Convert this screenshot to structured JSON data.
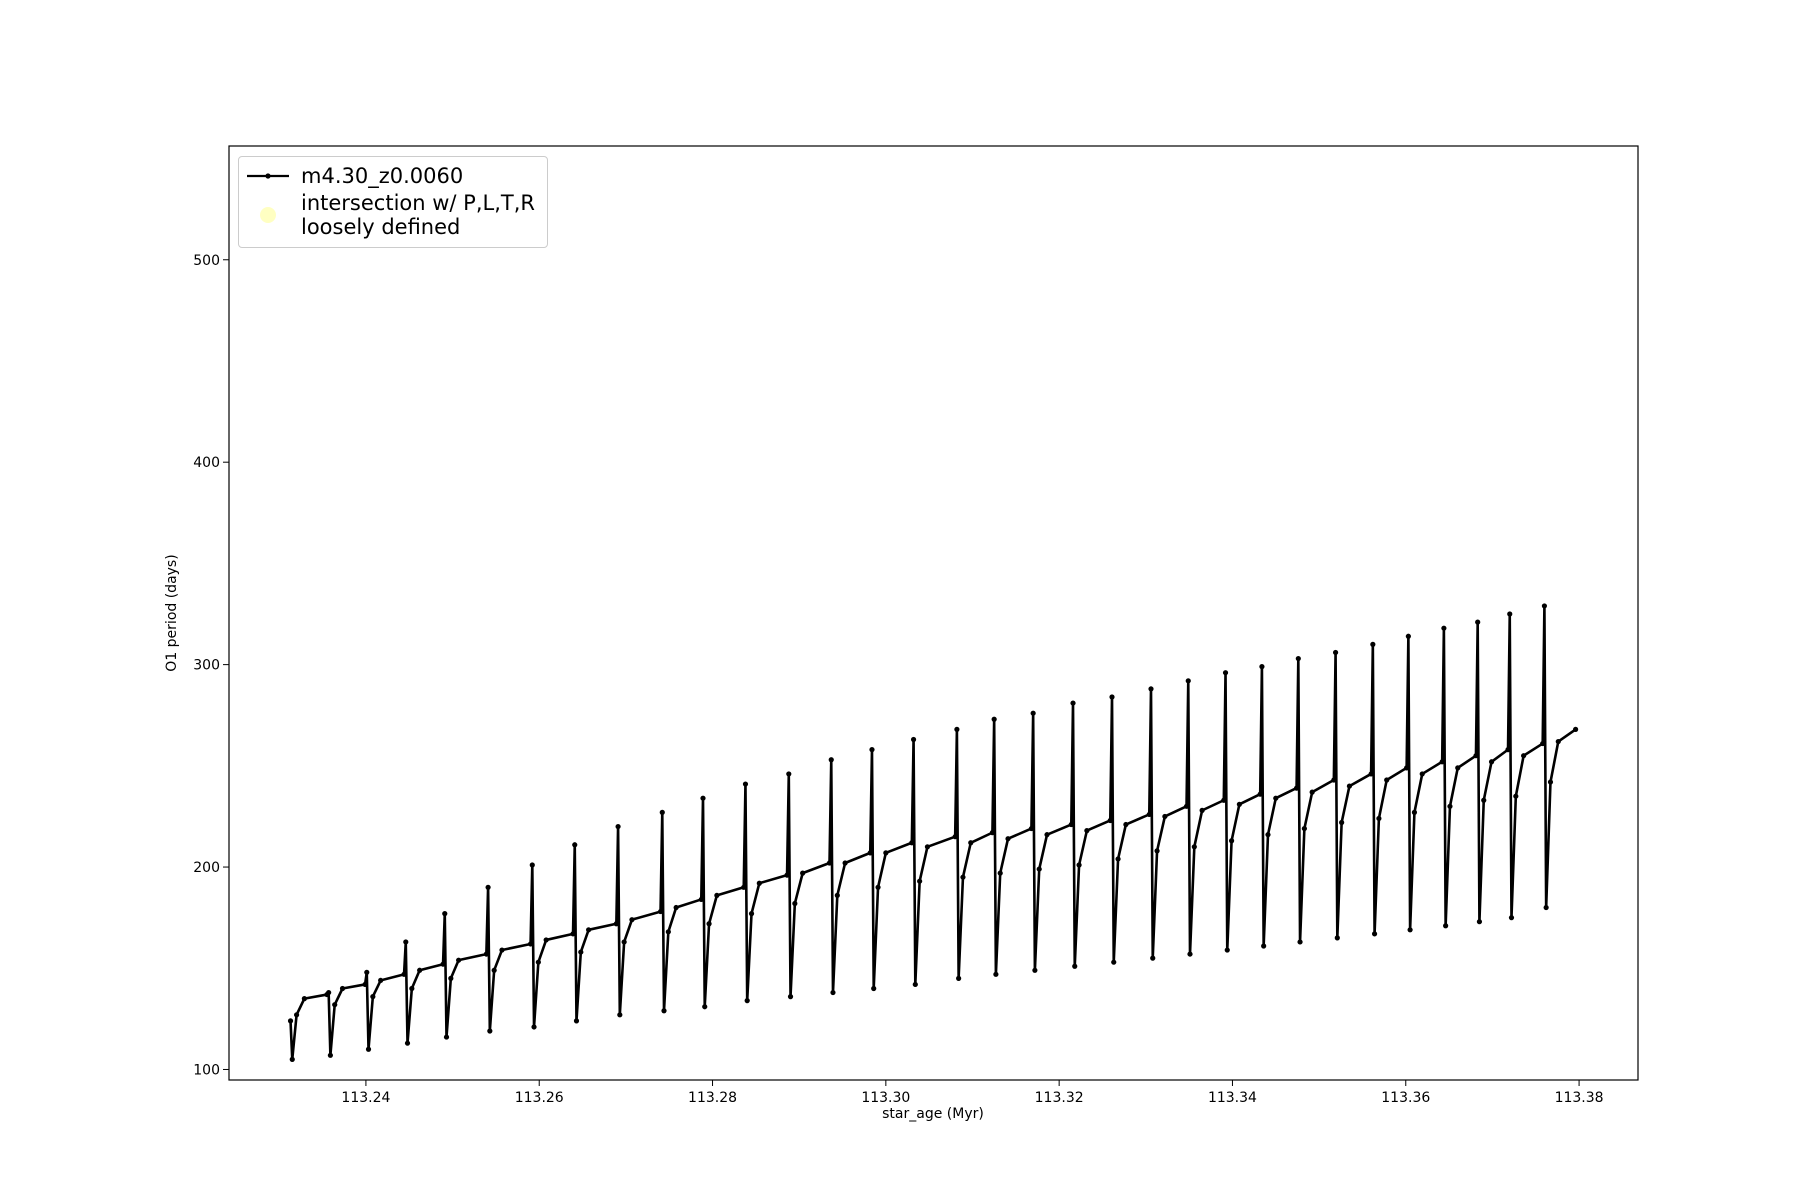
{
  "chart_data": {
    "type": "line",
    "xlabel": "star_age (Myr)",
    "ylabel": "O1 period (days)",
    "xlim": [
      113.2242,
      113.3868
    ],
    "ylim": [
      94.8,
      556.2
    ],
    "xticks": [
      113.24,
      113.26,
      113.28,
      {
        "value": 113.3,
        "label": "113.30"
      },
      113.32,
      113.34,
      113.36,
      113.38
    ],
    "yticks": [
      100,
      200,
      300,
      400,
      500
    ],
    "legend": "upper left",
    "x": [
      113.2313,
      113.2315,
      113.232,
      113.2329,
      113.2355,
      113.2357,
      113.2359,
      113.2364,
      113.2373,
      113.2399,
      113.2401,
      113.2403,
      113.2408,
      113.2417,
      113.2444,
      113.2446,
      113.2448,
      113.2453,
      113.2462,
      113.2489,
      113.2491,
      113.2493,
      113.2498,
      113.2507,
      113.2539,
      113.2541,
      113.2543,
      113.2548,
      113.2557,
      113.259,
      113.2592,
      113.2594,
      113.2599,
      113.2608,
      113.2639,
      113.2641,
      113.2643,
      113.2648,
      113.2657,
      113.2689,
      113.2691,
      113.2693,
      113.2698,
      113.2707,
      113.274,
      113.2742,
      113.2744,
      113.2749,
      113.2758,
      113.2787,
      113.2789,
      113.2791,
      113.2796,
      113.2805,
      113.2836,
      113.2838,
      113.284,
      113.2845,
      113.2854,
      113.2886,
      113.2888,
      113.289,
      113.2895,
      113.2904,
      113.2935,
      113.2937,
      113.2939,
      113.2944,
      113.2953,
      113.2982,
      113.2984,
      113.2986,
      113.2991,
      113.3,
      113.303,
      113.3032,
      113.3034,
      113.3039,
      113.3048,
      113.308,
      113.3082,
      113.3084,
      113.3089,
      113.3098,
      113.3123,
      113.3125,
      113.3127,
      113.3132,
      113.3141,
      113.3168,
      113.317,
      113.3172,
      113.3177,
      113.3186,
      113.3214,
      113.3216,
      113.3218,
      113.3223,
      113.3232,
      113.3259,
      113.3261,
      113.3263,
      113.3268,
      113.3277,
      113.3304,
      113.3306,
      113.3308,
      113.3313,
      113.3322,
      113.3347,
      113.3349,
      113.3351,
      113.3356,
      113.3365,
      113.339,
      113.3392,
      113.3394,
      113.3399,
      113.3408,
      113.3432,
      113.3434,
      113.3436,
      113.3441,
      113.345,
      113.3474,
      113.3476,
      113.3478,
      113.3483,
      113.3492,
      113.3517,
      113.3519,
      113.3521,
      113.3526,
      113.3535,
      113.356,
      113.3562,
      113.3564,
      113.3569,
      113.3578,
      113.3601,
      113.3603,
      113.3605,
      113.361,
      113.3619,
      113.3642,
      113.3644,
      113.3646,
      113.3651,
      113.366,
      113.3681,
      113.3683,
      113.3685,
      113.369,
      113.3699,
      113.3718,
      113.372,
      113.3722,
      113.3727,
      113.3736,
      113.3758,
      113.376,
      113.3762,
      113.3767,
      113.3776,
      113.3796
    ],
    "series": [
      {
        "name": "m4.30_z0.0060",
        "color": "#000000",
        "values": [
          124,
          105,
          127,
          135,
          137,
          138,
          107,
          132,
          140,
          142,
          148,
          110,
          136,
          144,
          147,
          163,
          113,
          140,
          149,
          152,
          177,
          116,
          145,
          154,
          157,
          190,
          119,
          149,
          159,
          162,
          201,
          121,
          153,
          164,
          167,
          211,
          124,
          158,
          169,
          172,
          220,
          127,
          163,
          174,
          178,
          227,
          129,
          168,
          180,
          184,
          234,
          131,
          172,
          186,
          190,
          241,
          134,
          177,
          192,
          196,
          246,
          136,
          182,
          197,
          202,
          253,
          138,
          186,
          202,
          207,
          258,
          140,
          190,
          207,
          212,
          263,
          142,
          193,
          210,
          215,
          268,
          145,
          195,
          212,
          217,
          273,
          147,
          197,
          214,
          219,
          276,
          149,
          199,
          216,
          221,
          281,
          151,
          201,
          218,
          223,
          284,
          153,
          204,
          221,
          226,
          288,
          155,
          208,
          225,
          230,
          292,
          157,
          210,
          228,
          233,
          296,
          159,
          213,
          231,
          236,
          299,
          161,
          216,
          234,
          239,
          303,
          163,
          219,
          237,
          243,
          306,
          165,
          222,
          240,
          246,
          310,
          167,
          224,
          243,
          249,
          314,
          169,
          227,
          246,
          252,
          318,
          171,
          230,
          249,
          255,
          321,
          173,
          233,
          252,
          258,
          325,
          175,
          235,
          255,
          261,
          329,
          180,
          242,
          262,
          268
        ]
      },
      {
        "name": "intersection w/ P,L,T,R\nloosely defined",
        "color": "#ffffb3",
        "type": "scatter",
        "x": [],
        "values": []
      }
    ]
  }
}
